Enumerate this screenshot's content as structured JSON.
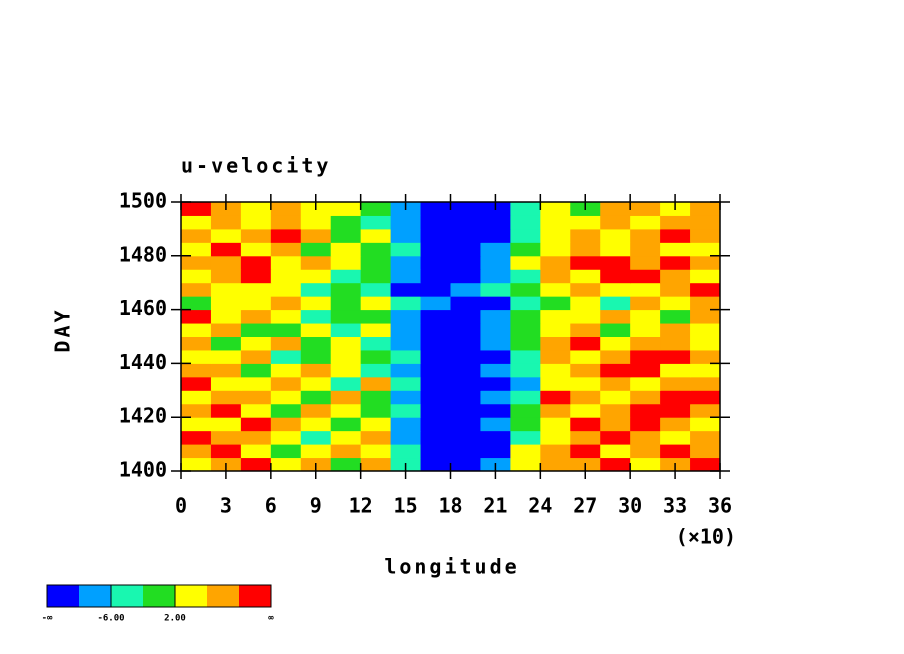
{
  "chart_data": {
    "type": "heatmap",
    "title": "u-velocity",
    "xlabel": "longitude",
    "ylabel": "DAY",
    "x_multiplier": "(×10)",
    "xlim": [
      0,
      36
    ],
    "xticks": [
      0,
      3,
      6,
      9,
      12,
      15,
      18,
      21,
      24,
      27,
      30,
      33,
      36
    ],
    "ylim": [
      1400,
      1500
    ],
    "yticks": [
      1400,
      1420,
      1440,
      1460,
      1480,
      1500
    ],
    "x": [
      1,
      3,
      5,
      7,
      9,
      11,
      13,
      15,
      17,
      19,
      21,
      23,
      25,
      27,
      29,
      31,
      33,
      35
    ],
    "y": [
      1402.5,
      1407.5,
      1412.5,
      1417.5,
      1422.5,
      1427.5,
      1432.5,
      1437.5,
      1442.5,
      1447.5,
      1452.5,
      1457.5,
      1462.5,
      1467.5,
      1472.5,
      1477.5,
      1482.5,
      1487.5,
      1492.5,
      1497.5
    ],
    "z": [
      [
        4,
        8,
        12,
        3,
        6,
        -1,
        9,
        -3,
        -12,
        -13,
        -8,
        4,
        9,
        6,
        11,
        5,
        8,
        10
      ],
      [
        7,
        11,
        5,
        -2,
        4,
        8,
        2,
        -5,
        -11,
        -14,
        -12,
        2,
        6,
        10,
        4,
        7,
        12,
        6
      ],
      [
        12,
        6,
        9,
        4,
        -3,
        5,
        7,
        -8,
        -13,
        -12,
        -11,
        -4,
        3,
        8,
        11,
        6,
        4,
        9
      ],
      [
        5,
        3,
        11,
        7,
        2,
        -1,
        4,
        -7,
        -14,
        -13,
        -9,
        -2,
        5,
        12,
        7,
        11,
        6,
        3
      ],
      [
        9,
        12,
        4,
        -1,
        6,
        3,
        -2,
        -6,
        -12,
        -15,
        -11,
        -1,
        8,
        4,
        9,
        12,
        10,
        7
      ],
      [
        3,
        7,
        8,
        5,
        0,
        7,
        1,
        -9,
        -13,
        -12,
        -10,
        -5,
        10,
        7,
        3,
        6,
        11,
        12
      ],
      [
        11,
        4,
        2,
        9,
        4,
        -3,
        6,
        -4,
        -11,
        -13,
        -12,
        -7,
        2,
        5,
        8,
        4,
        7,
        9
      ],
      [
        6,
        8,
        -1,
        3,
        8,
        5,
        -4,
        -10,
        -14,
        -12,
        -8,
        -3,
        4,
        9,
        12,
        11,
        5,
        3
      ],
      [
        2,
        5,
        7,
        -3,
        1,
        4,
        0,
        -6,
        -12,
        -13,
        -11,
        -6,
        6,
        3,
        7,
        10,
        12,
        8
      ],
      [
        8,
        -2,
        4,
        6,
        -1,
        2,
        -5,
        -8,
        -13,
        -14,
        -10,
        1,
        7,
        11,
        5,
        9,
        6,
        4
      ],
      [
        4,
        9,
        1,
        -2,
        5,
        -3,
        3,
        -7,
        -11,
        -12,
        -9,
        -2,
        3,
        6,
        -1,
        4,
        8,
        5
      ],
      [
        10,
        3,
        6,
        2,
        -4,
        1,
        -1,
        -9,
        -13,
        -11,
        -7,
        0,
        5,
        2,
        7,
        3,
        -2,
        6
      ],
      [
        -1,
        2,
        5,
        8,
        3,
        -2,
        4,
        -5,
        -10,
        -13,
        -11,
        -4,
        1,
        4,
        -3,
        6,
        2,
        7
      ],
      [
        7,
        5,
        2,
        4,
        -3,
        0,
        -6,
        -11,
        -12,
        -9,
        -6,
        -1,
        4,
        8,
        5,
        2,
        9,
        11
      ],
      [
        3,
        8,
        11,
        5,
        2,
        -4,
        1,
        -7,
        -12,
        -13,
        -10,
        -3,
        6,
        3,
        10,
        12,
        8,
        4
      ],
      [
        9,
        6,
        12,
        3,
        7,
        2,
        -2,
        -10,
        -14,
        -12,
        -8,
        2,
        7,
        11,
        12,
        6,
        11,
        9
      ],
      [
        2,
        11,
        4,
        8,
        1,
        5,
        -1,
        -6,
        -11,
        -13,
        -9,
        -2,
        4,
        6,
        3,
        8,
        2,
        5
      ],
      [
        8,
        3,
        7,
        12,
        6,
        -1,
        3,
        -8,
        -13,
        -14,
        -11,
        -5,
        5,
        9,
        4,
        7,
        10,
        6
      ],
      [
        5,
        9,
        2,
        6,
        4,
        1,
        -3,
        -9,
        -12,
        -13,
        -12,
        -4,
        2,
        5,
        8,
        3,
        6,
        9
      ],
      [
        12,
        7,
        4,
        9,
        2,
        5,
        -2,
        -7,
        -14,
        -15,
        -13,
        -6,
        3,
        1,
        6,
        9,
        4,
        7
      ]
    ],
    "colorbar": {
      "colors": [
        "#0000ff",
        "#00a0ff",
        "#19f7b0",
        "#22dd22",
        "#ffff00",
        "#ffa500",
        "#ff0000"
      ],
      "boundaries": [
        -10,
        -6,
        -2,
        2,
        6,
        10
      ],
      "ticks": [
        {
          "value": -6,
          "label": "-6.00"
        },
        {
          "value": 2,
          "label": "2.00"
        }
      ],
      "low_label": "-∞",
      "high_label": "∞"
    }
  }
}
